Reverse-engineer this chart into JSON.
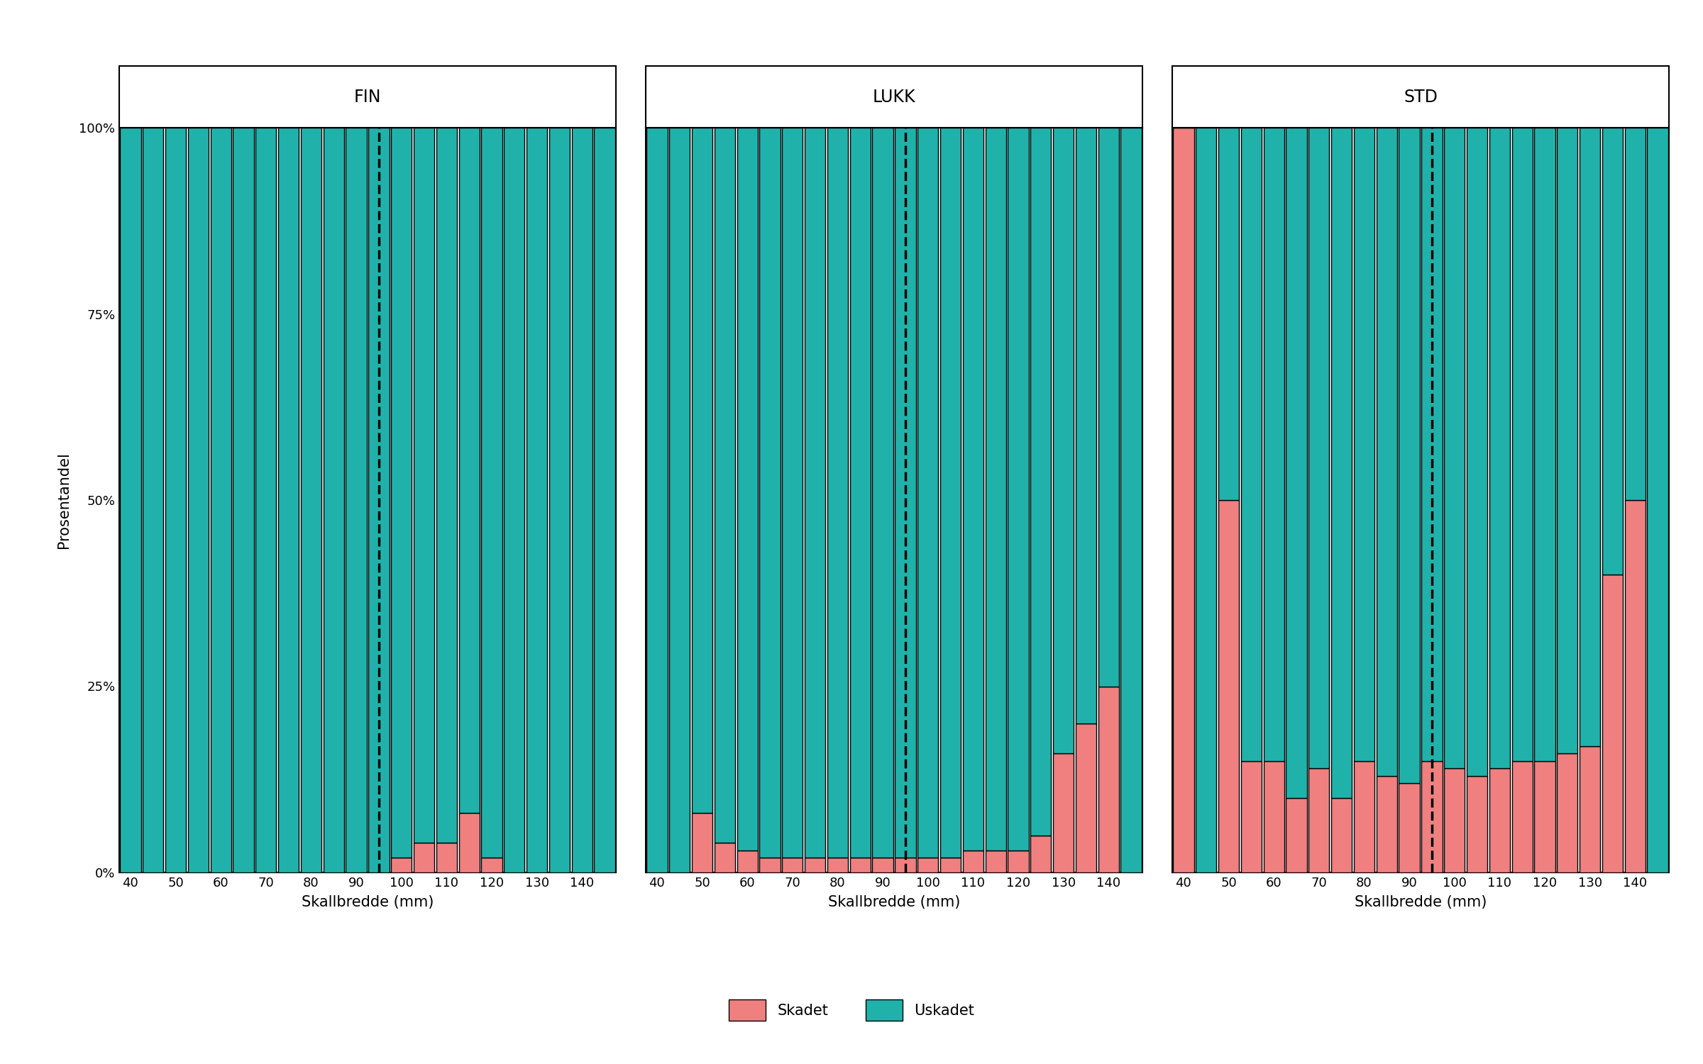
{
  "panels": [
    "FIN",
    "LUKK",
    "STD"
  ],
  "x_bins": [
    40,
    45,
    50,
    55,
    60,
    65,
    70,
    75,
    80,
    85,
    90,
    95,
    100,
    105,
    110,
    115,
    120,
    125,
    130,
    135,
    140,
    145
  ],
  "min_size_mm": 95,
  "fin_skadet": [
    0,
    0,
    0,
    0,
    0,
    0,
    0,
    0,
    0,
    0,
    0,
    0,
    2,
    4,
    4,
    8,
    2,
    0,
    0,
    0,
    0,
    0
  ],
  "lukk_skadet": [
    0,
    0,
    8,
    4,
    3,
    2,
    2,
    2,
    2,
    2,
    2,
    2,
    2,
    2,
    3,
    3,
    3,
    5,
    16,
    20,
    25,
    0
  ],
  "std_skadet": [
    100,
    0,
    50,
    15,
    15,
    10,
    14,
    10,
    15,
    13,
    12,
    15,
    14,
    13,
    14,
    15,
    15,
    16,
    17,
    40,
    50,
    0
  ],
  "color_damaged": "#F08080",
  "color_undamaged": "#20B2AA",
  "edgecolor": "#000000",
  "ylabel": "Prosentandel",
  "xlabel": "Skallbredde (mm)",
  "ytick_positions": [
    0,
    25,
    50,
    75,
    100
  ],
  "ytick_labels": [
    "0%",
    "25%",
    "50%",
    "75%",
    "100%"
  ],
  "legend_skadet": "Skadet",
  "legend_uskadet": "Uskadet",
  "bg_color": "#ffffff",
  "title_fontsize": 17,
  "axis_label_fontsize": 15,
  "tick_fontsize": 13,
  "legend_fontsize": 15
}
